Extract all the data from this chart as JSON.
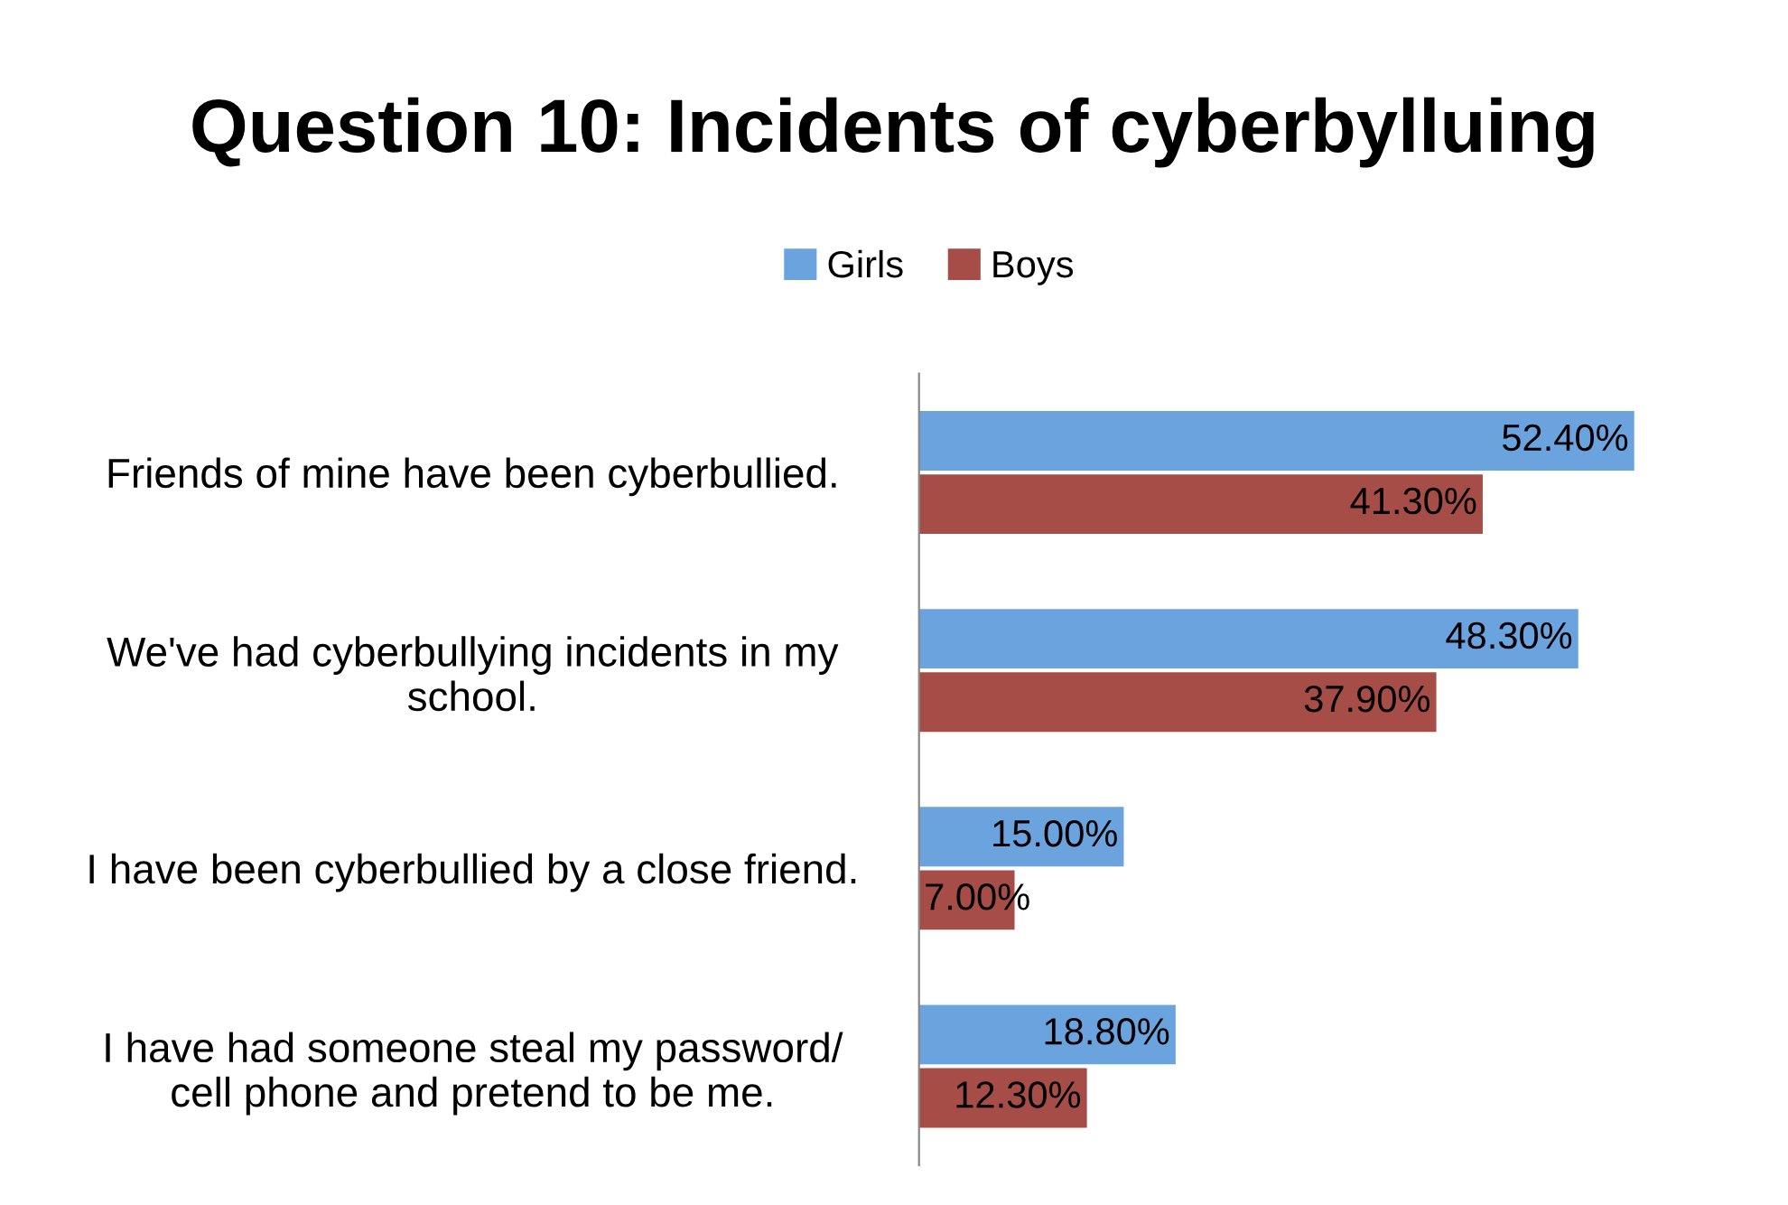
{
  "chart_data": {
    "type": "bar",
    "orientation": "horizontal",
    "title": "Question 10: Incidents of cyberbylluing",
    "categories": [
      "Friends of mine have been cyberbullied.",
      "We've had cyberbullying incidents in my\nschool.",
      "I have been cyberbullied by a close friend.",
      "I have had someone steal my password/\ncell phone and pretend to be me."
    ],
    "series": [
      {
        "name": "Girls",
        "color": "#6aa3dd",
        "values": [
          52.4,
          48.3,
          15.0,
          18.8
        ],
        "value_labels": [
          "52.40%",
          "48.30%",
          "15.00%",
          "18.80%"
        ]
      },
      {
        "name": "Boys",
        "color": "#a64d47",
        "values": [
          41.3,
          37.9,
          7.0,
          12.3
        ],
        "value_labels": [
          "41.30%",
          "37.90%",
          "7.00%",
          "12.30%"
        ]
      }
    ],
    "legend": "top",
    "grid": false
  }
}
